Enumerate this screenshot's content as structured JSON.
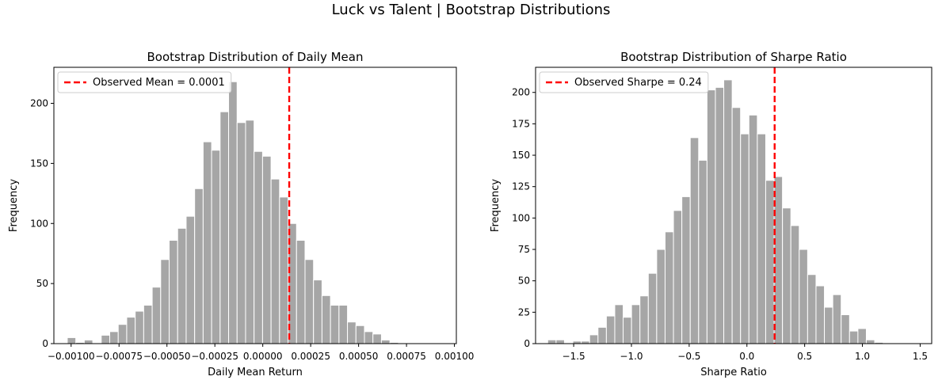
{
  "suptitle": "Luck vs Talent | Bootstrap Distributions",
  "chart_data": [
    {
      "type": "bar",
      "title": "Bootstrap Distribution of Daily Mean",
      "xlabel": "Daily Mean Return",
      "ylabel": "Frequency",
      "xlim": [
        -0.00109,
        0.00101
      ],
      "ylim": [
        0,
        230
      ],
      "xticks": [
        -0.001,
        -0.00075,
        -0.0005,
        -0.00025,
        0,
        0.00025,
        0.0005,
        0.00075,
        0.001
      ],
      "xtick_labels": [
        "−0.00100",
        "−0.00075",
        "−0.00050",
        "−0.00025",
        "0.00000",
        "0.00025",
        "0.00050",
        "0.00075",
        "0.00100"
      ],
      "yticks": [
        0,
        50,
        100,
        150,
        200
      ],
      "ytick_labels": [
        "0",
        "50",
        "100",
        "150",
        "200"
      ],
      "bin_start": -0.00102,
      "bin_width": 4.43e-05,
      "counts": [
        5,
        1,
        3,
        0,
        7,
        10,
        16,
        22,
        27,
        32,
        47,
        70,
        86,
        96,
        106,
        129,
        168,
        161,
        193,
        218,
        184,
        186,
        160,
        156,
        137,
        122,
        100,
        86,
        70,
        53,
        40,
        32,
        32,
        18,
        15,
        10,
        8,
        3,
        1
      ],
      "bar_color": "#a6a6a6",
      "observed_line": {
        "x": 0.000138,
        "label": "Observed Mean = 0.0001",
        "color": "#ff0000",
        "style": "dashed"
      },
      "legend_position": "top-left",
      "grid": false
    },
    {
      "type": "bar",
      "title": "Bootstrap Distribution of Sharpe Ratio",
      "xlabel": "Sharpe Ratio",
      "ylabel": "Frequency",
      "xlim": [
        -1.83,
        1.6
      ],
      "ylim": [
        0,
        220
      ],
      "xticks": [
        -1.5,
        -1.0,
        -0.5,
        0,
        0.5,
        1.0,
        1.5
      ],
      "xtick_labels": [
        "−1.5",
        "−1.0",
        "−0.5",
        "0.0",
        "0.5",
        "1.0",
        "1.5"
      ],
      "yticks": [
        0,
        25,
        50,
        75,
        100,
        125,
        150,
        175,
        200
      ],
      "ytick_labels": [
        "0",
        "25",
        "50",
        "75",
        "100",
        "125",
        "150",
        "175",
        "200"
      ],
      "bin_start": -1.725,
      "bin_width": 0.0726,
      "counts": [
        3,
        3,
        0,
        2,
        2,
        7,
        13,
        22,
        31,
        21,
        31,
        38,
        56,
        75,
        89,
        106,
        117,
        164,
        146,
        202,
        204,
        210,
        188,
        167,
        182,
        167,
        130,
        133,
        108,
        94,
        75,
        55,
        46,
        29,
        39,
        23,
        10,
        12,
        3,
        1
      ],
      "bar_color": "#a6a6a6",
      "observed_line": {
        "x": 0.24,
        "label": "Observed Sharpe = 0.24",
        "color": "#ff0000",
        "style": "dashed"
      },
      "legend_position": "top-left",
      "grid": false
    }
  ]
}
